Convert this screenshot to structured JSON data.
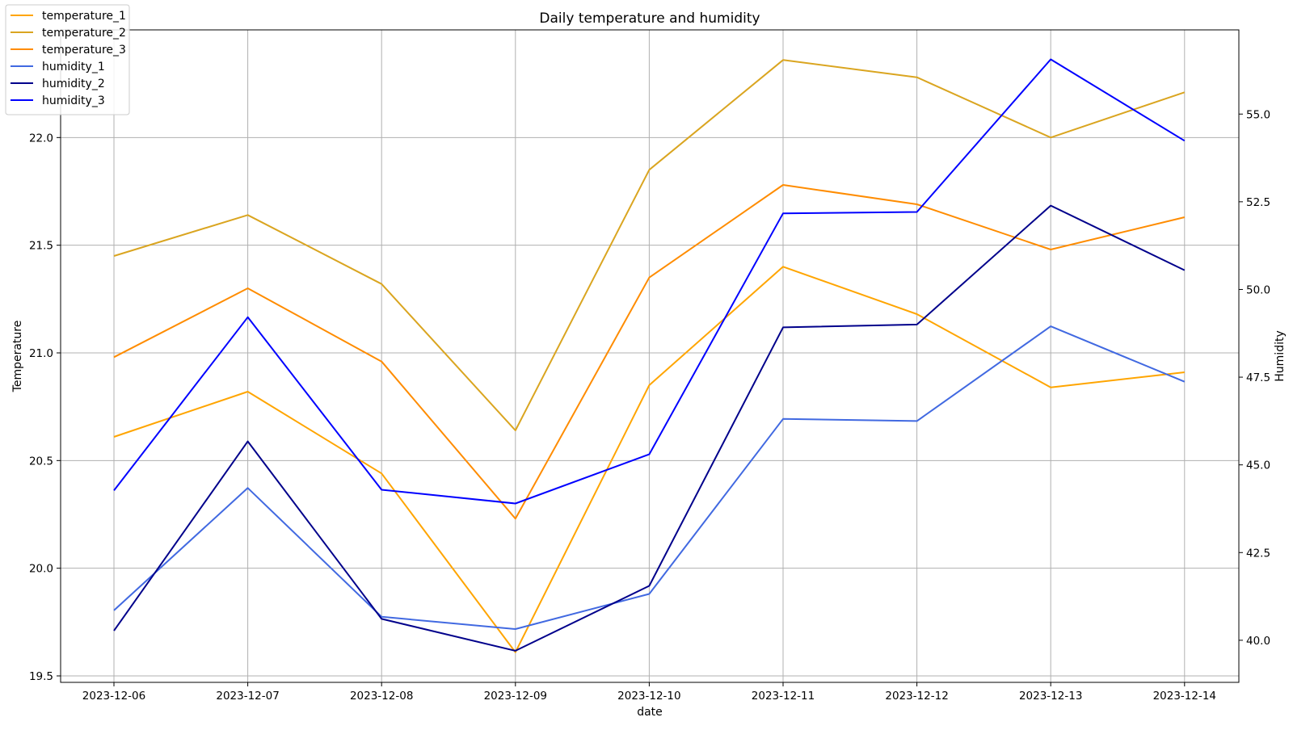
{
  "chart_data": {
    "type": "line",
    "title": "Daily temperature and humidity",
    "xlabel": "date",
    "ylabel": "Temperature",
    "y2label": "Humidity",
    "categories": [
      "2023-12-06",
      "2023-12-07",
      "2023-12-08",
      "2023-12-09",
      "2023-12-10",
      "2023-12-11",
      "2023-12-12",
      "2023-12-13",
      "2023-12-14"
    ],
    "ylim": [
      19.47,
      22.5
    ],
    "y2lim": [
      38.8,
      57.4
    ],
    "yticks": [
      19.5,
      20.0,
      20.5,
      21.0,
      21.5,
      22.0
    ],
    "ytick_labels": [
      "19.5",
      "20.0",
      "20.5",
      "21.0",
      "21.5",
      "22.0"
    ],
    "y2ticks": [
      40.0,
      42.5,
      45.0,
      47.5,
      50.0,
      52.5,
      55.0
    ],
    "y2tick_labels": [
      "40.0",
      "42.5",
      "45.0",
      "47.5",
      "50.0",
      "52.5",
      "55.0"
    ],
    "grid": true,
    "legend_position": "top-left",
    "series": [
      {
        "name": "temperature_1",
        "axis": "left",
        "color": "#FFA500",
        "values": [
          20.61,
          20.82,
          20.44,
          19.61,
          20.85,
          21.4,
          21.18,
          20.84,
          20.91
        ]
      },
      {
        "name": "temperature_2",
        "axis": "left",
        "color": "#DAA520",
        "values": [
          21.45,
          21.64,
          21.32,
          20.64,
          21.85,
          22.36,
          22.28,
          22.0,
          22.21
        ]
      },
      {
        "name": "temperature_3",
        "axis": "left",
        "color": "#FF8C00",
        "values": [
          20.98,
          21.3,
          20.96,
          20.23,
          21.35,
          21.78,
          21.69,
          21.48,
          21.63
        ]
      },
      {
        "name": "humidity_1",
        "axis": "right",
        "color": "#4169E1",
        "values": [
          40.85,
          44.34,
          40.67,
          40.32,
          41.32,
          46.31,
          46.25,
          48.95,
          47.37
        ]
      },
      {
        "name": "humidity_2",
        "axis": "right",
        "color": "#00008B",
        "values": [
          40.27,
          45.67,
          40.61,
          39.7,
          41.55,
          48.92,
          49.0,
          52.39,
          50.55
        ]
      },
      {
        "name": "humidity_3",
        "axis": "right",
        "color": "#0000FF",
        "values": [
          44.27,
          49.21,
          44.29,
          43.9,
          45.3,
          52.17,
          52.21,
          56.56,
          54.24
        ]
      }
    ]
  }
}
